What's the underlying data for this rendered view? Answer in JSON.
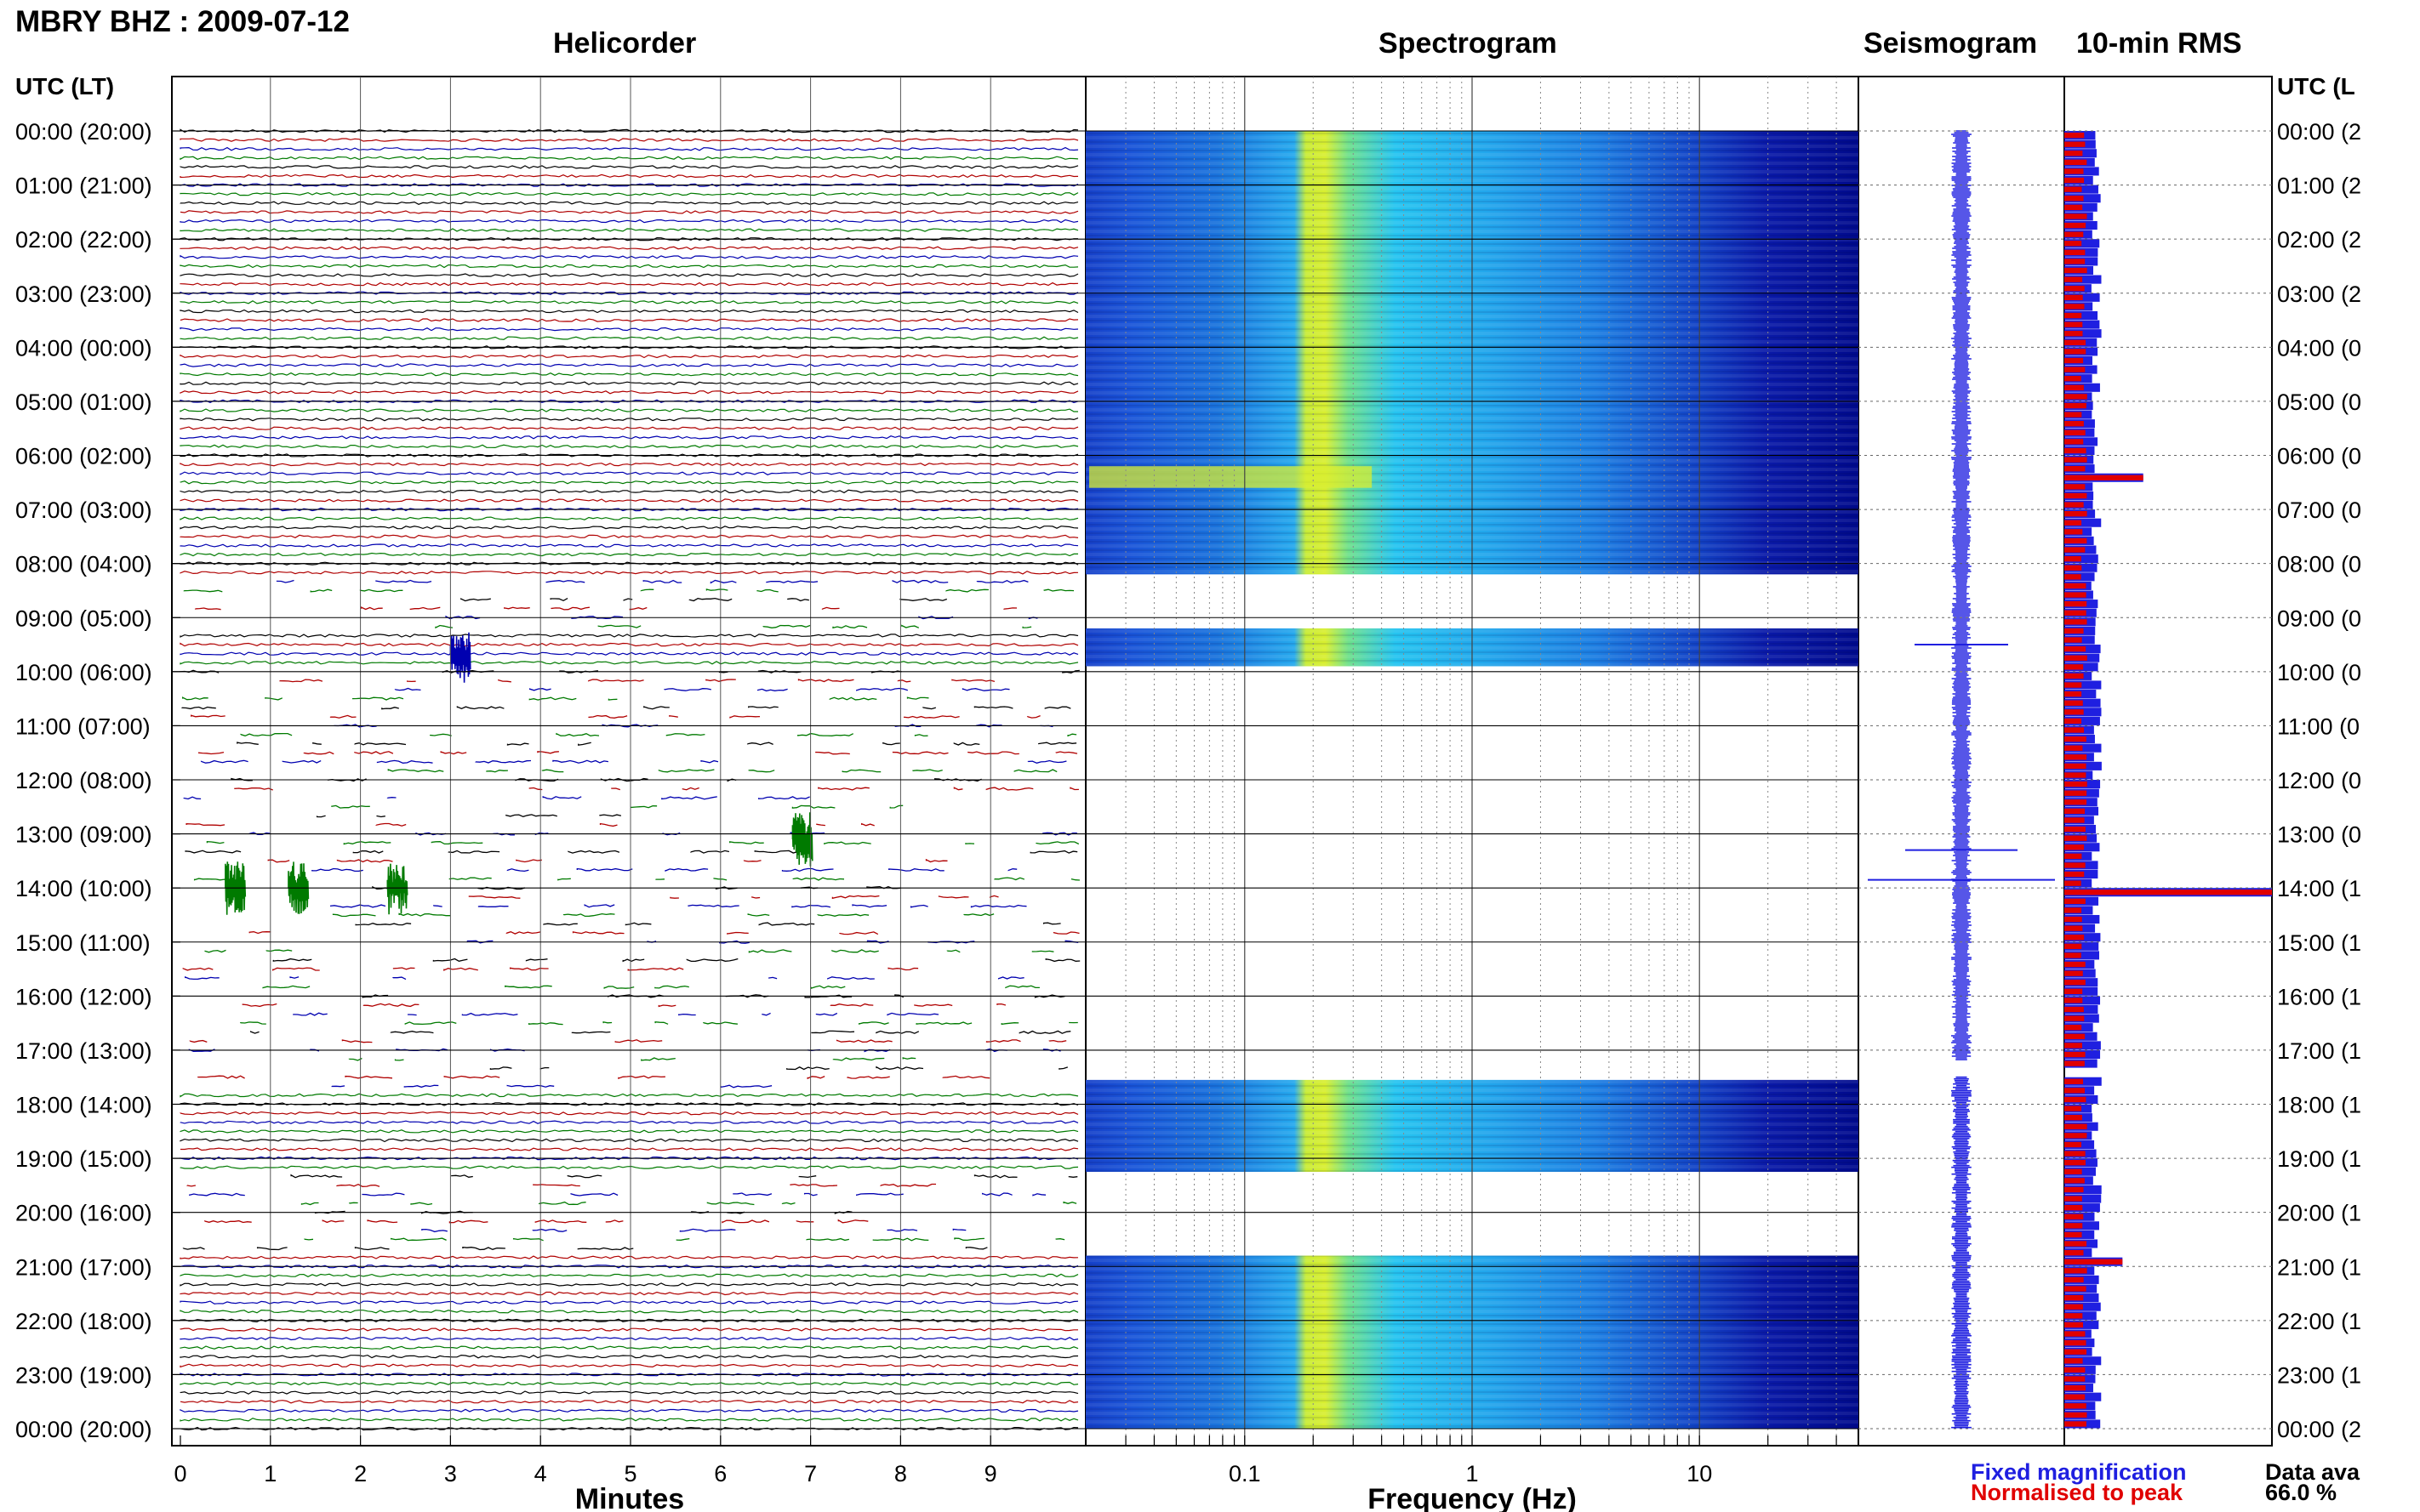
{
  "header": {
    "station_title": "MBRY BHZ : 2009-07-12",
    "utc_lt_label": "UTC (LT)",
    "right_utc_label": "UTC (L"
  },
  "panels": {
    "helicorder_title": "Helicorder",
    "spectrogram_title": "Spectrogram",
    "seismogram_title": "Seismogram",
    "rms_title": "10-min RMS"
  },
  "legend": {
    "fixed": "Fixed magnification",
    "normalised": "Normalised to peak",
    "fixed_color": "#1f1fe0",
    "normalised_color": "#e00000"
  },
  "availability": {
    "label": "Data ava",
    "value": "66.0 %"
  },
  "colors": {
    "trace_cycle": [
      "#000000",
      "#b00000",
      "#0000b0",
      "#007a00"
    ],
    "spec_dark": "#000a8c",
    "spec_cyan": "#26c4f0",
    "spec_yellow": "#d8ee30",
    "seis": "#1f1fe0",
    "rms_red": "#e00000",
    "rms_blue": "#1f1fe0"
  },
  "chart_data": [
    {
      "type": "line",
      "name": "helicorder",
      "xlabel": "Minutes",
      "x_ticks": [
        0,
        1,
        2,
        3,
        4,
        5,
        6,
        7,
        8,
        9
      ],
      "xlim": [
        0,
        10
      ],
      "y_time_labels_utc_lt": [
        "00:00 (20:00)",
        "01:00 (21:00)",
        "02:00 (22:00)",
        "03:00 (23:00)",
        "04:00 (00:00)",
        "05:00 (01:00)",
        "06:00 (02:00)",
        "07:00 (03:00)",
        "08:00 (04:00)",
        "09:00 (05:00)",
        "10:00 (06:00)",
        "11:00 (07:00)",
        "12:00 (08:00)",
        "13:00 (09:00)",
        "14:00 (10:00)",
        "15:00 (11:00)",
        "16:00 (12:00)",
        "17:00 (13:00)",
        "18:00 (14:00)",
        "19:00 (15:00)",
        "20:00 (16:00)",
        "21:00 (17:00)",
        "22:00 (18:00)",
        "23:00 (19:00)",
        "00:00 (20:00)"
      ],
      "right_time_labels": [
        "00:00 (2",
        "01:00 (2",
        "02:00 (2",
        "03:00 (2",
        "04:00 (0",
        "05:00 (0",
        "06:00 (0",
        "07:00 (0",
        "08:00 (0",
        "09:00 (0",
        "10:00 (0",
        "11:00 (0",
        "12:00 (0",
        "13:00 (0",
        "14:00 (1",
        "15:00 (1",
        "16:00 (1",
        "17:00 (1",
        "18:00 (1",
        "19:00 (1",
        "20:00 (1",
        "21:00 (1",
        "22:00 (1",
        "23:00 (1",
        "00:00 (2"
      ],
      "lines_per_hour": 6,
      "continuous_hours": [
        [
          0,
          8.2
        ],
        [
          9.2,
          10.0
        ],
        [
          17.8,
          19.2
        ],
        [
          20.8,
          24.0
        ]
      ],
      "gappy_hours": [
        [
          8.2,
          9.2
        ],
        [
          10.0,
          17.8
        ],
        [
          19.2,
          20.8
        ]
      ],
      "events": [
        {
          "hour_line": 14.0,
          "minute": 0.5,
          "color_index": 3
        },
        {
          "hour_line": 14.0,
          "minute": 1.2,
          "color_index": 3
        },
        {
          "hour_line": 14.0,
          "minute": 2.3,
          "color_index": 3
        },
        {
          "hour_line": 13.1,
          "minute": 6.8,
          "color_index": 3
        },
        {
          "hour_line": 9.7,
          "minute": 3.0,
          "color_index": 2
        }
      ]
    },
    {
      "type": "heatmap",
      "name": "spectrogram",
      "xlabel": "Frequency (Hz)",
      "x_scale": "log",
      "xlim": [
        0.02,
        50
      ],
      "x_tick_labels": [
        0.1,
        1,
        10
      ],
      "data_hours": [
        [
          0,
          8.2
        ],
        [
          9.2,
          9.9
        ],
        [
          17.55,
          19.25
        ],
        [
          20.8,
          24.0
        ]
      ],
      "microseism_peak_hz": [
        0.22,
        0.4
      ],
      "event_band": {
        "hours": [
          6.2,
          6.6
        ],
        "freq_hz": [
          0.02,
          0.35
        ]
      }
    },
    {
      "type": "line",
      "name": "seismogram",
      "data_hours": [
        [
          0,
          17.2
        ],
        [
          17.5,
          24.0
        ]
      ],
      "spikes": [
        {
          "hour": 9.5,
          "amplitude": 0.5
        },
        {
          "hour": 13.3,
          "amplitude": 0.6
        },
        {
          "hour": 13.85,
          "amplitude": 1.0
        }
      ]
    },
    {
      "type": "bar",
      "name": "10-min RMS",
      "bins_per_hour": 6,
      "series": [
        {
          "name": "Fixed magnification",
          "note": "blue"
        },
        {
          "name": "Normalised to peak",
          "note": "red"
        }
      ],
      "peaks": [
        {
          "hour": 6.3,
          "normalised": 0.38,
          "fixed": 0.38
        },
        {
          "hour": 13.95,
          "normalised": 1.0,
          "fixed": 1.0
        },
        {
          "hour": 20.8,
          "normalised": 0.28,
          "fixed": 0.28
        }
      ]
    }
  ]
}
